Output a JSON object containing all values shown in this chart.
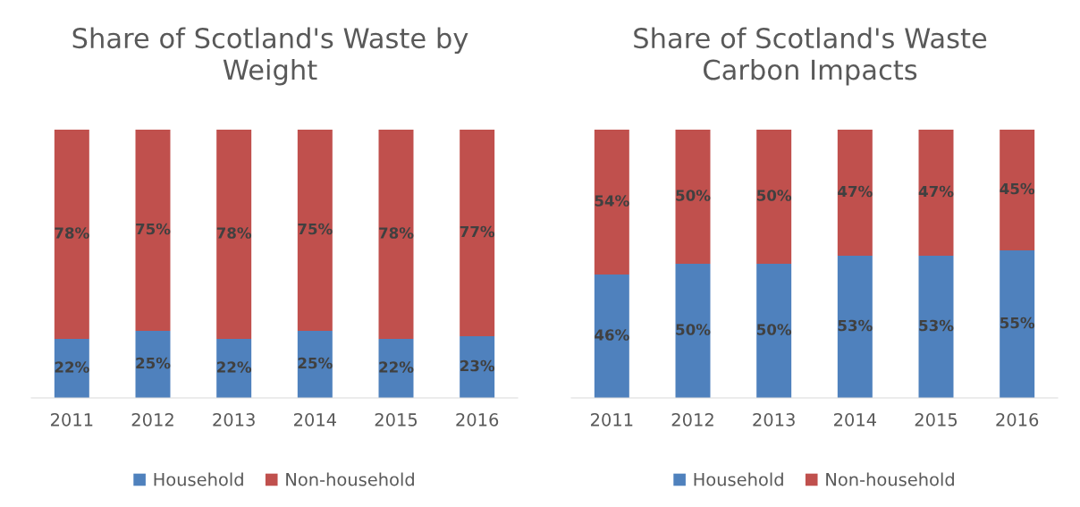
{
  "chart_data": [
    {
      "type": "bar",
      "title": "Share of Scotland's Waste by\nWeight",
      "categories": [
        "2011",
        "2012",
        "2013",
        "2014",
        "2015",
        "2016"
      ],
      "stacked": true,
      "legend": "bottom",
      "grid": false,
      "tick_labels": "x",
      "series": [
        {
          "name": "Household",
          "color": "#4f81bd",
          "values": [
            22,
            25,
            22,
            25,
            22,
            23
          ],
          "value_labels": [
            "22%",
            "25%",
            "22%",
            "25%",
            "22%",
            "23%"
          ]
        },
        {
          "name": "Non-household",
          "color": "#c0504d",
          "values": [
            78,
            75,
            78,
            75,
            78,
            77
          ],
          "value_labels": [
            "78%",
            "75%",
            "78%",
            "75%",
            "78%",
            "77%"
          ]
        }
      ]
    },
    {
      "type": "bar",
      "title": "Share of Scotland's Waste\nCarbon Impacts",
      "categories": [
        "2011",
        "2012",
        "2013",
        "2014",
        "2015",
        "2016"
      ],
      "stacked": true,
      "legend": "bottom",
      "grid": false,
      "tick_labels": "x",
      "series": [
        {
          "name": "Household",
          "color": "#4f81bd",
          "values": [
            46,
            50,
            50,
            53,
            53,
            55
          ],
          "value_labels": [
            "46%",
            "50%",
            "50%",
            "53%",
            "53%",
            "55%"
          ]
        },
        {
          "name": "Non-household",
          "color": "#c0504d",
          "values": [
            54,
            50,
            50,
            47,
            47,
            45
          ],
          "value_labels": [
            "54%",
            "50%",
            "50%",
            "47%",
            "47%",
            "45%"
          ]
        }
      ]
    }
  ]
}
